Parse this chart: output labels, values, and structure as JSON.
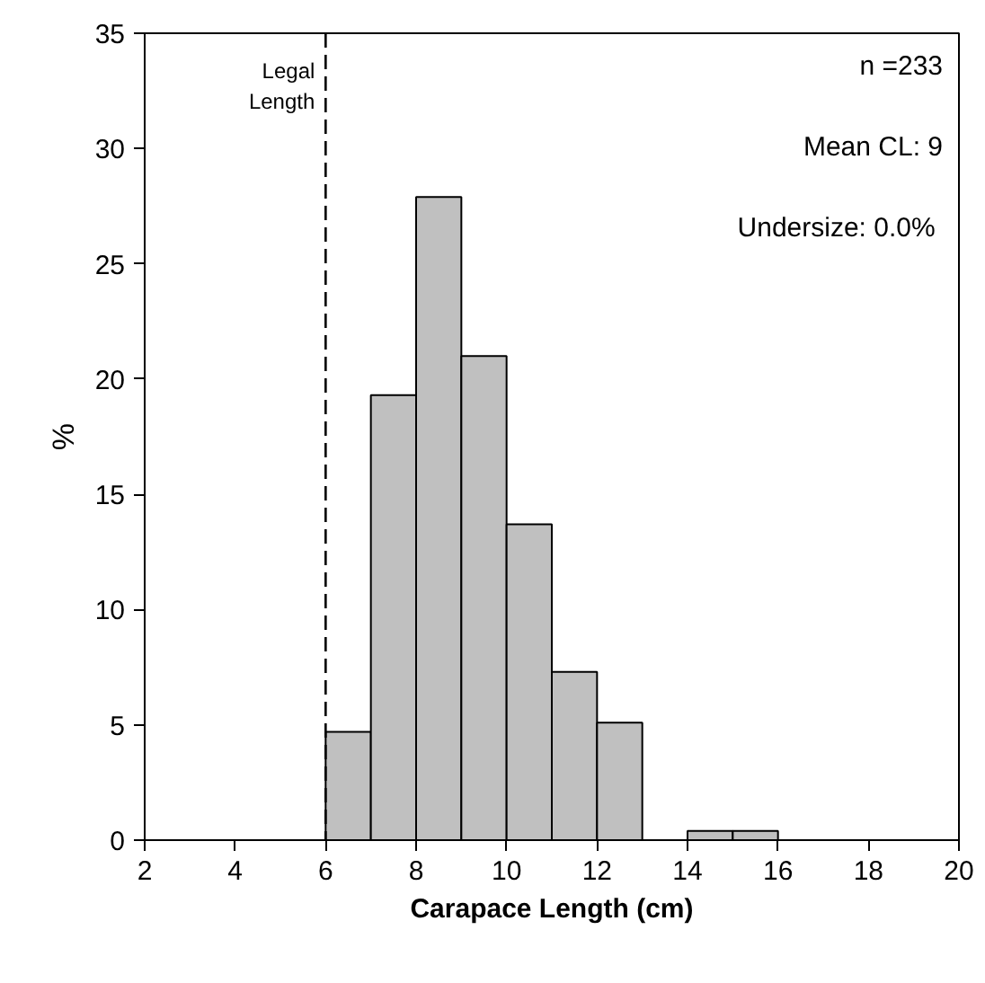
{
  "chart_data": {
    "type": "histogram",
    "xlabel": "Carapace Length (cm)",
    "ylabel": "%",
    "bins": [
      2,
      3,
      4,
      5,
      6,
      7,
      8,
      9,
      10,
      11,
      12,
      13,
      14,
      15,
      16,
      17,
      18,
      19,
      20
    ],
    "values": [
      0,
      0,
      0,
      0,
      4.7,
      19.3,
      27.9,
      21.0,
      13.7,
      7.3,
      5.1,
      0,
      0.4,
      0.4,
      0,
      0,
      0,
      0
    ],
    "color": "#c0c0c0",
    "xlim": [
      2,
      20
    ],
    "xticks": [
      2,
      4,
      6,
      8,
      10,
      12,
      14,
      16,
      18,
      20
    ],
    "ylim": [
      0,
      35
    ],
    "yticks": [
      0,
      5,
      10,
      15,
      20,
      25,
      30,
      35
    ],
    "grid": false,
    "ref_lines": [
      {
        "axis": "x",
        "value": 6,
        "label": "Legal\nLength",
        "color": "#000000",
        "line_style": "dashed"
      }
    ],
    "annotations": [
      "n =233",
      "Mean CL: 9",
      "Undersize:  0.0%"
    ]
  }
}
